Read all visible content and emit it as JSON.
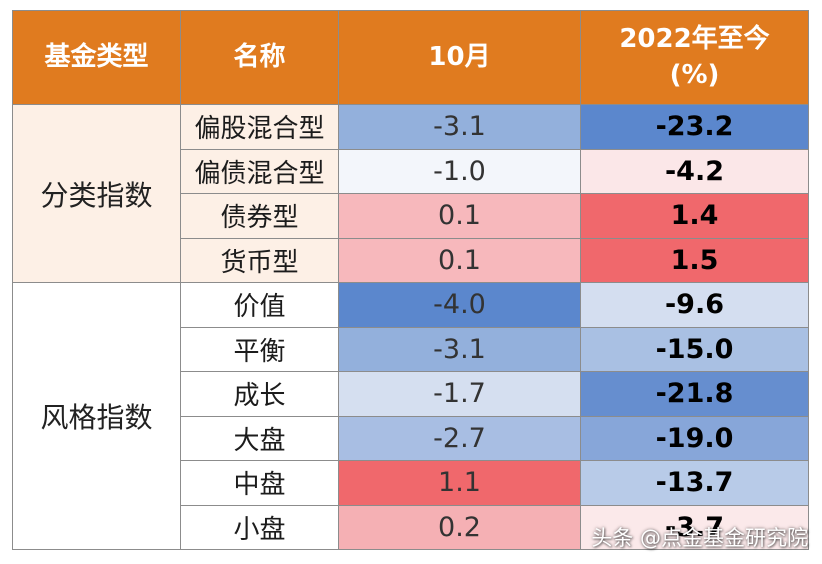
{
  "header": {
    "col1": "基金类型",
    "col2": "名称",
    "col3": "10月",
    "col4_line1": "2022年至今",
    "col4_line2": "(%)"
  },
  "groups": [
    {
      "label": "分类指数",
      "rows": [
        {
          "name": "偏股混合型",
          "oct": "-3.1",
          "ytd": "-23.2",
          "oct_color": "#93b0dc",
          "ytd_color": "#5b87cd"
        },
        {
          "name": "偏债混合型",
          "oct": "-1.0",
          "ytd": "-4.2",
          "oct_color": "#f3f6fb",
          "ytd_color": "#fbe7e8"
        },
        {
          "name": "债券型",
          "oct": "0.1",
          "ytd": "1.4",
          "oct_color": "#f7b8bc",
          "ytd_color": "#f0686c"
        },
        {
          "name": "货币型",
          "oct": "0.1",
          "ytd": "1.5",
          "oct_color": "#f7b8bc",
          "ytd_color": "#f0686c"
        }
      ]
    },
    {
      "label": "风格指数",
      "rows": [
        {
          "name": "价值",
          "oct": "-4.0",
          "ytd": "-9.6",
          "oct_color": "#5b87cd",
          "ytd_color": "#d4def0"
        },
        {
          "name": "平衡",
          "oct": "-3.1",
          "ytd": "-15.0",
          "oct_color": "#93b0dc",
          "ytd_color": "#a9c0e3"
        },
        {
          "name": "成长",
          "oct": "-1.7",
          "ytd": "-21.8",
          "oct_color": "#d5dff0",
          "ytd_color": "#668ecf"
        },
        {
          "name": "大盘",
          "oct": "-2.7",
          "ytd": "-19.0",
          "oct_color": "#a8bee3",
          "ytd_color": "#87a6d9"
        },
        {
          "name": "中盘",
          "oct": "1.1",
          "ytd": "-13.7",
          "oct_color": "#f0686c",
          "ytd_color": "#b8cbe8"
        },
        {
          "name": "小盘",
          "oct": "0.2",
          "ytd": "-3.7",
          "oct_color": "#f5b0b4",
          "ytd_color": "#fbe9ea"
        }
      ]
    }
  ],
  "watermark": "头条 @点金基金研究院"
}
